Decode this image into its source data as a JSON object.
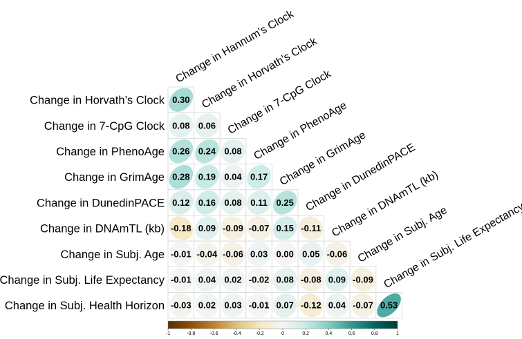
{
  "chart_data": {
    "type": "heatmap",
    "subtype": "correlation-lower-triangle-ellipse",
    "row_labels": [
      "Change in Horvath’s Clock",
      "Change in 7-CpG Clock",
      "Change in PhenoAge",
      "Change in GrimAge",
      "Change in DunedinPACE",
      "Change in DNAmTL (kb)",
      "Change in Subj. Age",
      "Change in Subj. Life Expectancy",
      "Change in Subj. Health Horizon"
    ],
    "col_labels": [
      "Change in Hannum’s Clock",
      "Change in Horvath’s Clock",
      "Change in 7-CpG Clock",
      "Change in PhenoAge",
      "Change in GrimAge",
      "Change in DunedinPACE",
      "Change in DNAmTL (kb)",
      "Change in Subj. Age",
      "Change in Subj. Life Expectancy"
    ],
    "values": [
      [
        0.3
      ],
      [
        0.08,
        0.06
      ],
      [
        0.26,
        0.24,
        0.08
      ],
      [
        0.28,
        0.19,
        0.04,
        0.17
      ],
      [
        0.12,
        0.16,
        0.08,
        0.11,
        0.25
      ],
      [
        -0.18,
        0.09,
        -0.09,
        -0.07,
        0.15,
        -0.11
      ],
      [
        -0.01,
        -0.04,
        -0.06,
        0.03,
        0.0,
        0.05,
        -0.06
      ],
      [
        -0.01,
        0.04,
        0.02,
        -0.02,
        0.08,
        -0.08,
        0.09,
        -0.09
      ],
      [
        -0.03,
        0.02,
        0.03,
        -0.01,
        0.07,
        -0.12,
        0.04,
        -0.07,
        0.53
      ]
    ],
    "value_labels": [
      [
        "0.30"
      ],
      [
        "0.08",
        "0.06"
      ],
      [
        "0.26",
        "0.24",
        "0.08"
      ],
      [
        "0.28",
        "0.19",
        "0.04",
        "0.17"
      ],
      [
        "0.12",
        "0.16",
        "0.08",
        "0.11",
        "0.25"
      ],
      [
        "-0.18",
        "0.09",
        "-0.09",
        "-0.07",
        "0.15",
        "-0.11"
      ],
      [
        "-0.01",
        "-0.04",
        "-0.06",
        "0.03",
        "0.00",
        "0.05",
        "-0.06"
      ],
      [
        "-0.01",
        "0.04",
        "0.02",
        "-0.02",
        "0.08",
        "-0.08",
        "0.09",
        "-0.09"
      ],
      [
        "-0.03",
        "0.02",
        "0.03",
        "-0.01",
        "0.07",
        "-0.12",
        "0.04",
        "-0.07",
        "0.53"
      ]
    ],
    "colorbar": {
      "range": [
        -1,
        1
      ],
      "ticks": [
        -1,
        -0.8,
        -0.6,
        -0.4,
        -0.2,
        0,
        0.2,
        0.4,
        0.6,
        0.8,
        1
      ],
      "tick_labels": [
        "-1",
        "-0.8",
        "-0.6",
        "-0.4",
        "-0.2",
        "0",
        "0.2",
        "0.4",
        "0.6",
        "0.8",
        "1"
      ],
      "colors": [
        "#543005",
        "#8c510a",
        "#bf812d",
        "#dfc27d",
        "#f6e8c3",
        "#f5f5f5",
        "#c7eae5",
        "#80cdc1",
        "#35978f",
        "#01665e",
        "#003c30"
      ]
    },
    "grid": true,
    "title": "",
    "xlabel": "",
    "ylabel": ""
  }
}
